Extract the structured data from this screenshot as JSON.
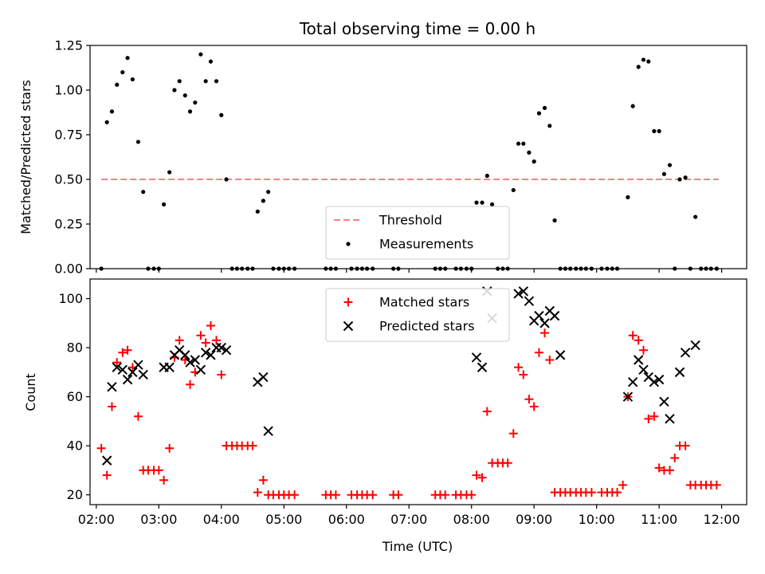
{
  "figure": {
    "title": "Total observing time = 0.00 h"
  },
  "chart_data": [
    {
      "type": "scatter",
      "title": "Total observing time = 0.00 h",
      "xlabel": "",
      "ylabel": "Matched/Predicted stars",
      "x_unit": "hours (UTC)",
      "xlim": [
        1.9,
        12.4
      ],
      "ylim": [
        0,
        1.25
      ],
      "yticks": [
        0,
        0.25,
        0.5,
        0.75,
        1.0,
        1.25
      ],
      "ytick_labels": [
        "0.00",
        "0.25",
        "0.50",
        "0.75",
        "1.00",
        "1.25"
      ],
      "grid": false,
      "legend_position": "lower center",
      "threshold": {
        "name": "Threshold",
        "y": 0.5,
        "x_range": [
          2.08,
          11.95
        ],
        "color": "#ff8080",
        "style": "dashed"
      },
      "series": [
        {
          "name": "Measurements",
          "color": "#000000",
          "marker": "dot",
          "points": [
            [
              2.08,
              0.0
            ],
            [
              2.17,
              0.82
            ],
            [
              2.25,
              0.88
            ],
            [
              2.33,
              1.03
            ],
            [
              2.42,
              1.1
            ],
            [
              2.5,
              1.18
            ],
            [
              2.58,
              1.06
            ],
            [
              2.67,
              0.71
            ],
            [
              2.75,
              0.43
            ],
            [
              2.83,
              0.0
            ],
            [
              2.92,
              0.0
            ],
            [
              3.0,
              0.0
            ],
            [
              3.08,
              0.36
            ],
            [
              3.17,
              0.54
            ],
            [
              3.25,
              1.0
            ],
            [
              3.33,
              1.05
            ],
            [
              3.42,
              0.97
            ],
            [
              3.5,
              0.88
            ],
            [
              3.58,
              0.93
            ],
            [
              3.67,
              1.2
            ],
            [
              3.75,
              1.05
            ],
            [
              3.83,
              1.16
            ],
            [
              3.92,
              1.05
            ],
            [
              4.0,
              0.86
            ],
            [
              4.08,
              0.5
            ],
            [
              4.17,
              0.0
            ],
            [
              4.25,
              0.0
            ],
            [
              4.33,
              0.0
            ],
            [
              4.42,
              0.0
            ],
            [
              4.5,
              0.0
            ],
            [
              4.58,
              0.32
            ],
            [
              4.67,
              0.38
            ],
            [
              4.75,
              0.43
            ],
            [
              4.83,
              0.0
            ],
            [
              4.92,
              0.0
            ],
            [
              5.0,
              0.0
            ],
            [
              5.08,
              0.0
            ],
            [
              5.17,
              0.0
            ],
            [
              5.67,
              0.0
            ],
            [
              5.75,
              0.0
            ],
            [
              5.83,
              0.0
            ],
            [
              6.08,
              0.0
            ],
            [
              6.17,
              0.0
            ],
            [
              6.25,
              0.0
            ],
            [
              6.33,
              0.0
            ],
            [
              6.42,
              0.0
            ],
            [
              6.75,
              0.0
            ],
            [
              6.83,
              0.0
            ],
            [
              7.42,
              0.0
            ],
            [
              7.5,
              0.0
            ],
            [
              7.58,
              0.0
            ],
            [
              7.75,
              0.0
            ],
            [
              7.83,
              0.0
            ],
            [
              7.92,
              0.0
            ],
            [
              8.0,
              0.0
            ],
            [
              8.08,
              0.37
            ],
            [
              8.17,
              0.37
            ],
            [
              8.25,
              0.52
            ],
            [
              8.33,
              0.36
            ],
            [
              8.42,
              0.0
            ],
            [
              8.5,
              0.0
            ],
            [
              8.58,
              0.0
            ],
            [
              8.67,
              0.44
            ],
            [
              8.75,
              0.7
            ],
            [
              8.83,
              0.7
            ],
            [
              8.92,
              0.65
            ],
            [
              9.0,
              0.6
            ],
            [
              9.08,
              0.87
            ],
            [
              9.17,
              0.9
            ],
            [
              9.25,
              0.8
            ],
            [
              9.33,
              0.27
            ],
            [
              9.42,
              0.0
            ],
            [
              9.5,
              0.0
            ],
            [
              9.58,
              0.0
            ],
            [
              9.67,
              0.0
            ],
            [
              9.75,
              0.0
            ],
            [
              9.83,
              0.0
            ],
            [
              9.92,
              0.0
            ],
            [
              10.08,
              0.0
            ],
            [
              10.17,
              0.0
            ],
            [
              10.25,
              0.0
            ],
            [
              10.33,
              0.0
            ],
            [
              10.5,
              0.4
            ],
            [
              10.58,
              0.91
            ],
            [
              10.67,
              1.13
            ],
            [
              10.75,
              1.17
            ],
            [
              10.83,
              1.16
            ],
            [
              10.92,
              0.77
            ],
            [
              11.0,
              0.77
            ],
            [
              11.08,
              0.53
            ],
            [
              11.17,
              0.58
            ],
            [
              11.25,
              0.0
            ],
            [
              11.33,
              0.5
            ],
            [
              11.42,
              0.51
            ],
            [
              11.5,
              0.0
            ],
            [
              11.58,
              0.29
            ],
            [
              11.67,
              0.0
            ],
            [
              11.75,
              0.0
            ],
            [
              11.83,
              0.0
            ],
            [
              11.92,
              0.0
            ]
          ]
        }
      ],
      "legend": [
        {
          "label": "Threshold",
          "kind": "dash",
          "color": "#ff8080"
        },
        {
          "label": "Measurements",
          "kind": "dot",
          "color": "#000000"
        }
      ]
    },
    {
      "type": "scatter",
      "title": "",
      "xlabel": "Time (UTC)",
      "ylabel": "Count",
      "x_unit": "hours (UTC)",
      "xlim": [
        1.9,
        12.4
      ],
      "ylim": [
        16,
        108
      ],
      "yticks": [
        20,
        40,
        60,
        80,
        100
      ],
      "ytick_labels": [
        "20",
        "40",
        "60",
        "80",
        "100"
      ],
      "xticks": [
        2,
        3,
        4,
        5,
        6,
        7,
        8,
        9,
        10,
        11,
        12
      ],
      "xtick_labels": [
        "02:00",
        "03:00",
        "04:00",
        "05:00",
        "06:00",
        "07:00",
        "08:00",
        "09:00",
        "10:00",
        "11:00",
        "12:00"
      ],
      "grid": false,
      "legend_position": "upper center",
      "series": [
        {
          "name": "Matched stars",
          "color": "#ff0000",
          "marker": "plus",
          "points": [
            [
              2.08,
              39
            ],
            [
              2.17,
              28
            ],
            [
              2.25,
              56
            ],
            [
              2.33,
              74
            ],
            [
              2.42,
              78
            ],
            [
              2.5,
              79
            ],
            [
              2.58,
              72
            ],
            [
              2.67,
              52
            ],
            [
              2.75,
              30
            ],
            [
              2.83,
              30
            ],
            [
              2.92,
              30
            ],
            [
              3.0,
              30
            ],
            [
              3.08,
              26
            ],
            [
              3.17,
              39
            ],
            [
              3.25,
              76
            ],
            [
              3.33,
              83
            ],
            [
              3.42,
              75
            ],
            [
              3.5,
              65
            ],
            [
              3.58,
              70
            ],
            [
              3.67,
              85
            ],
            [
              3.75,
              82
            ],
            [
              3.83,
              89
            ],
            [
              3.92,
              83
            ],
            [
              4.0,
              69
            ],
            [
              4.08,
              40
            ],
            [
              4.17,
              40
            ],
            [
              4.25,
              40
            ],
            [
              4.33,
              40
            ],
            [
              4.42,
              40
            ],
            [
              4.5,
              40
            ],
            [
              4.58,
              21
            ],
            [
              4.67,
              26
            ],
            [
              4.75,
              20
            ],
            [
              4.83,
              20
            ],
            [
              4.92,
              20
            ],
            [
              5.0,
              20
            ],
            [
              5.08,
              20
            ],
            [
              5.17,
              20
            ],
            [
              5.67,
              20
            ],
            [
              5.75,
              20
            ],
            [
              5.83,
              20
            ],
            [
              6.08,
              20
            ],
            [
              6.17,
              20
            ],
            [
              6.25,
              20
            ],
            [
              6.33,
              20
            ],
            [
              6.42,
              20
            ],
            [
              6.75,
              20
            ],
            [
              6.83,
              20
            ],
            [
              7.42,
              20
            ],
            [
              7.5,
              20
            ],
            [
              7.58,
              20
            ],
            [
              7.75,
              20
            ],
            [
              7.83,
              20
            ],
            [
              7.92,
              20
            ],
            [
              8.0,
              20
            ],
            [
              8.08,
              28
            ],
            [
              8.17,
              27
            ],
            [
              8.25,
              54
            ],
            [
              8.33,
              33
            ],
            [
              8.42,
              33
            ],
            [
              8.5,
              33
            ],
            [
              8.58,
              33
            ],
            [
              8.67,
              45
            ],
            [
              8.75,
              72
            ],
            [
              8.83,
              69
            ],
            [
              8.92,
              59
            ],
            [
              9.0,
              56
            ],
            [
              9.08,
              78
            ],
            [
              9.17,
              86
            ],
            [
              9.25,
              75
            ],
            [
              9.33,
              21
            ],
            [
              9.42,
              21
            ],
            [
              9.5,
              21
            ],
            [
              9.58,
              21
            ],
            [
              9.67,
              21
            ],
            [
              9.75,
              21
            ],
            [
              9.83,
              21
            ],
            [
              9.92,
              21
            ],
            [
              10.08,
              21
            ],
            [
              10.17,
              21
            ],
            [
              10.25,
              21
            ],
            [
              10.33,
              21
            ],
            [
              10.42,
              24
            ],
            [
              10.5,
              60
            ],
            [
              10.58,
              85
            ],
            [
              10.67,
              83
            ],
            [
              10.75,
              79
            ],
            [
              10.83,
              51
            ],
            [
              10.92,
              52
            ],
            [
              11.0,
              31
            ],
            [
              11.08,
              30
            ],
            [
              11.17,
              30
            ],
            [
              11.25,
              35
            ],
            [
              11.33,
              40
            ],
            [
              11.42,
              40
            ],
            [
              11.5,
              24
            ],
            [
              11.58,
              24
            ],
            [
              11.67,
              24
            ],
            [
              11.75,
              24
            ],
            [
              11.83,
              24
            ],
            [
              11.92,
              24
            ]
          ]
        },
        {
          "name": "Predicted stars",
          "color": "#000000",
          "marker": "x",
          "points": [
            [
              2.17,
              34
            ],
            [
              2.25,
              64
            ],
            [
              2.33,
              72
            ],
            [
              2.42,
              71
            ],
            [
              2.5,
              67
            ],
            [
              2.58,
              70
            ],
            [
              2.67,
              73
            ],
            [
              2.75,
              69
            ],
            [
              3.08,
              72
            ],
            [
              3.17,
              72
            ],
            [
              3.25,
              77
            ],
            [
              3.33,
              79
            ],
            [
              3.42,
              77
            ],
            [
              3.5,
              74
            ],
            [
              3.58,
              75
            ],
            [
              3.67,
              71
            ],
            [
              3.75,
              78
            ],
            [
              3.83,
              77
            ],
            [
              3.92,
              80
            ],
            [
              4.0,
              80
            ],
            [
              4.08,
              79
            ],
            [
              4.58,
              66
            ],
            [
              4.67,
              68
            ],
            [
              4.75,
              46
            ],
            [
              8.08,
              76
            ],
            [
              8.17,
              72
            ],
            [
              8.25,
              103
            ],
            [
              8.33,
              92
            ],
            [
              8.75,
              102
            ],
            [
              8.83,
              103
            ],
            [
              8.92,
              99
            ],
            [
              9.0,
              91
            ],
            [
              9.08,
              93
            ],
            [
              9.17,
              90
            ],
            [
              9.25,
              95
            ],
            [
              9.33,
              93
            ],
            [
              9.42,
              77
            ],
            [
              10.5,
              60
            ],
            [
              10.58,
              66
            ],
            [
              10.67,
              75
            ],
            [
              10.75,
              71
            ],
            [
              10.83,
              68
            ],
            [
              10.92,
              66
            ],
            [
              11.0,
              67
            ],
            [
              11.08,
              58
            ],
            [
              11.17,
              51
            ],
            [
              11.33,
              70
            ],
            [
              11.42,
              78
            ],
            [
              11.58,
              81
            ]
          ]
        }
      ],
      "legend": [
        {
          "label": "Matched stars",
          "kind": "plus",
          "color": "#ff0000"
        },
        {
          "label": "Predicted stars",
          "kind": "x",
          "color": "#000000"
        }
      ]
    }
  ]
}
